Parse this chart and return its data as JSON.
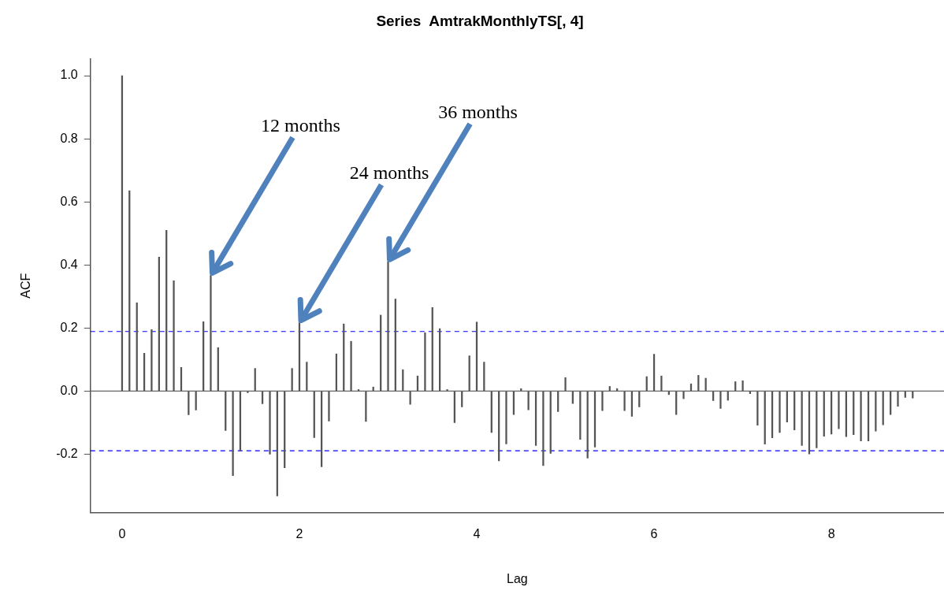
{
  "chart_data": {
    "type": "bar",
    "title": "Series  AmtrakMonthlyTS[, 4]",
    "xlabel": "Lag",
    "ylabel": "ACF",
    "x": [
      0,
      0.083,
      0.167,
      0.25,
      0.333,
      0.417,
      0.5,
      0.583,
      0.667,
      0.75,
      0.833,
      0.917,
      1,
      1.083,
      1.167,
      1.25,
      1.333,
      1.417,
      1.5,
      1.583,
      1.667,
      1.75,
      1.833,
      1.917,
      2,
      2.083,
      2.167,
      2.25,
      2.333,
      2.417,
      2.5,
      2.583,
      2.667,
      2.75,
      2.833,
      2.917,
      3,
      3.083,
      3.167,
      3.25,
      3.333,
      3.417,
      3.5,
      3.583,
      3.667,
      3.75,
      3.833,
      3.917,
      4,
      4.083,
      4.167,
      4.25,
      4.333,
      4.417,
      4.5,
      4.583,
      4.667,
      4.75,
      4.833,
      4.917,
      5,
      5.083,
      5.167,
      5.25,
      5.333,
      5.417,
      5.5,
      5.583,
      5.667,
      5.75,
      5.833,
      5.917,
      6,
      6.083,
      6.167,
      6.25,
      6.333,
      6.417,
      6.5,
      6.583,
      6.667,
      6.75,
      6.833,
      6.917,
      7,
      7.083,
      7.167,
      7.25,
      7.333,
      7.417,
      7.5,
      7.583,
      7.667,
      7.75,
      7.833,
      7.917,
      8,
      8.083,
      8.167,
      8.25,
      8.333,
      8.417,
      8.5,
      8.583,
      8.667,
      8.75,
      8.833,
      8.917
    ],
    "values": [
      1.0,
      0.635,
      0.28,
      0.12,
      0.195,
      0.425,
      0.51,
      0.35,
      0.075,
      -0.075,
      -0.06,
      0.22,
      0.367,
      0.138,
      -0.125,
      -0.268,
      -0.19,
      -0.005,
      0.072,
      -0.04,
      -0.2,
      -0.332,
      -0.243,
      0.072,
      0.217,
      0.092,
      -0.147,
      -0.24,
      -0.095,
      0.118,
      0.213,
      0.158,
      0.005,
      -0.096,
      0.013,
      0.241,
      0.41,
      0.292,
      0.068,
      -0.042,
      0.048,
      0.185,
      0.265,
      0.198,
      0.005,
      -0.1,
      -0.05,
      0.112,
      0.219,
      0.092,
      -0.131,
      -0.221,
      -0.167,
      -0.074,
      0.008,
      -0.059,
      -0.172,
      -0.236,
      -0.197,
      -0.065,
      0.043,
      -0.039,
      -0.153,
      -0.212,
      -0.177,
      -0.062,
      0.015,
      0.008,
      -0.062,
      -0.08,
      -0.05,
      0.046,
      0.117,
      0.048,
      -0.011,
      -0.074,
      -0.024,
      0.023,
      0.05,
      0.041,
      -0.03,
      -0.055,
      -0.029,
      0.03,
      0.033,
      -0.008,
      -0.108,
      -0.168,
      -0.148,
      -0.131,
      -0.098,
      -0.123,
      -0.172,
      -0.199,
      -0.18,
      -0.143,
      -0.136,
      -0.119,
      -0.144,
      -0.138,
      -0.158,
      -0.158,
      -0.127,
      -0.107,
      -0.074,
      -0.048,
      -0.02,
      -0.022
    ],
    "color": "#555555",
    "xlim": [
      -0.357,
      9.27
    ],
    "xticks": [
      0,
      2,
      4,
      6,
      8
    ],
    "ylim": [
      -0.385,
      1.053
    ],
    "yticks": [
      -0.2,
      {
        "value": 0,
        "label": "0.0"
      },
      0.2,
      0.4,
      0.6,
      0.8,
      {
        "value": 1,
        "label": "1.0"
      }
    ],
    "ref_lines": [
      {
        "axis": "y",
        "value": 0,
        "color": "#666666",
        "line_style": "solid"
      },
      {
        "axis": "y",
        "value": 0.189,
        "color": "#0000ff",
        "line_style": "dashed"
      },
      {
        "axis": "y",
        "value": -0.189,
        "color": "#0000ff",
        "line_style": "dashed"
      }
    ],
    "annotations": [
      {
        "text": "12 months",
        "x": 1,
        "y": 0.367
      },
      {
        "text": "24 months",
        "x": 2,
        "y": 0.217
      },
      {
        "text": "36 months",
        "x": 3,
        "y": 0.41
      }
    ],
    "grid": false,
    "legend": false
  }
}
